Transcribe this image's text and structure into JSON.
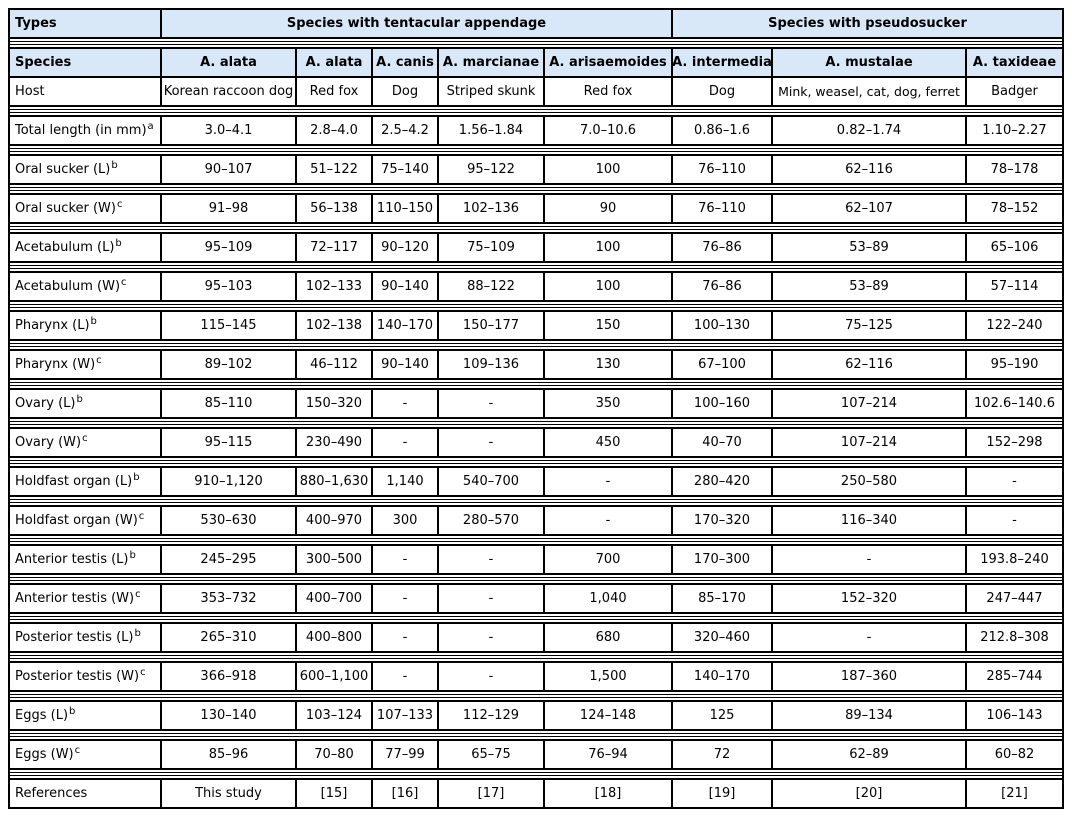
{
  "table": {
    "colors": {
      "header_bg": "#d9e8f8",
      "border": "#000000",
      "background": "#ffffff"
    },
    "header": {
      "types_label": "Types",
      "group1": "Species with tentacular appendage",
      "group2": "Species with pseudosucker",
      "species_label": "Species",
      "host_label": "Host",
      "species": [
        "A. alata",
        "A. alata",
        "A. canis",
        "A. marcianae",
        "A. arisaemoides",
        "A. intermedia",
        "A. mustalae",
        "A. taxideae"
      ],
      "hosts": [
        "Korean raccoon dog",
        "Red fox",
        "Dog",
        "Striped skunk",
        "Red fox",
        "Dog",
        "Mink, weasel, cat, dog, ferret",
        "Badger"
      ]
    },
    "rows": [
      {
        "label": "Total length (in mm)",
        "sup": "a",
        "values": [
          "3.0–4.1",
          "2.8–4.0",
          "2.5–4.2",
          "1.56–1.84",
          "7.0–10.6",
          "0.86–1.6",
          "0.82–1.74",
          "1.10–2.27"
        ]
      },
      {
        "label": "Oral sucker (L)",
        "sup": "b",
        "values": [
          "90–107",
          "51–122",
          "75–140",
          "95–122",
          "100",
          "76–110",
          "62–116",
          "78–178"
        ]
      },
      {
        "label": "Oral sucker (W)",
        "sup": "c",
        "values": [
          "91–98",
          "56–138",
          "110–150",
          "102–136",
          "90",
          "76–110",
          "62–107",
          "78–152"
        ]
      },
      {
        "label": "Acetabulum (L)",
        "sup": "b",
        "values": [
          "95–109",
          "72–117",
          "90–120",
          "75–109",
          "100",
          "76–86",
          "53–89",
          "65–106"
        ]
      },
      {
        "label": "Acetabulum (W)",
        "sup": "c",
        "values": [
          "95–103",
          "102–133",
          "90–140",
          "88–122",
          "100",
          "76–86",
          "53–89",
          "57–114"
        ]
      },
      {
        "label": "Pharynx (L)",
        "sup": "b",
        "values": [
          "115–145",
          "102–138",
          "140–170",
          "150–177",
          "150",
          "100–130",
          "75–125",
          "122–240"
        ]
      },
      {
        "label": "Pharynx (W)",
        "sup": "c",
        "values": [
          "89–102",
          "46–112",
          "90–140",
          "109–136",
          "130",
          "67–100",
          "62–116",
          "95–190"
        ]
      },
      {
        "label": "Ovary (L)",
        "sup": "b",
        "values": [
          "85–110",
          "150–320",
          "-",
          "-",
          "350",
          "100–160",
          "107–214",
          "102.6–140.6"
        ]
      },
      {
        "label": "Ovary (W)",
        "sup": "c",
        "values": [
          "95–115",
          "230–490",
          "-",
          "-",
          "450",
          "40–70",
          "107–214",
          "152–298"
        ]
      },
      {
        "label": "Holdfast organ (L)",
        "sup": "b",
        "values": [
          "910–1,120",
          "880–1,630",
          "1,140",
          "540–700",
          "-",
          "280–420",
          "250–580",
          "-"
        ]
      },
      {
        "label": "Holdfast organ (W)",
        "sup": "c",
        "values": [
          "530–630",
          "400–970",
          "300",
          "280–570",
          "-",
          "170–320",
          "116–340",
          "-"
        ]
      },
      {
        "label": "Anterior testis (L)",
        "sup": "b",
        "values": [
          "245–295",
          "300–500",
          "-",
          "-",
          "700",
          "170–300",
          "-",
          "193.8–240"
        ]
      },
      {
        "label": "Anterior testis (W)",
        "sup": "c",
        "values": [
          "353–732",
          "400–700",
          "-",
          "-",
          "1,040",
          "85–170",
          "152–320",
          "247–447"
        ]
      },
      {
        "label": "Posterior testis (L)",
        "sup": "b",
        "values": [
          "265–310",
          "400–800",
          "-",
          "-",
          "680",
          "320–460",
          "-",
          "212.8–308"
        ]
      },
      {
        "label": "Posterior testis (W)",
        "sup": "c",
        "values": [
          "366–918",
          "600–1,100",
          "-",
          "-",
          "1,500",
          "140–170",
          "187–360",
          "285–744"
        ]
      },
      {
        "label": "Eggs (L)",
        "sup": "b",
        "values": [
          "130–140",
          "103–124",
          "107–133",
          "112–129",
          "124–148",
          "125",
          "89–134",
          "106–143"
        ]
      },
      {
        "label": "Eggs (W)",
        "sup": "c",
        "values": [
          "85–96",
          "70–80",
          "77–99",
          "65–75",
          "76–94",
          "72",
          "62–89",
          "60–82"
        ]
      },
      {
        "label": "References",
        "sup": "",
        "values": [
          "This study",
          "[15]",
          "[16]",
          "[17]",
          "[18]",
          "[19]",
          "[20]",
          "[21]"
        ]
      }
    ]
  }
}
